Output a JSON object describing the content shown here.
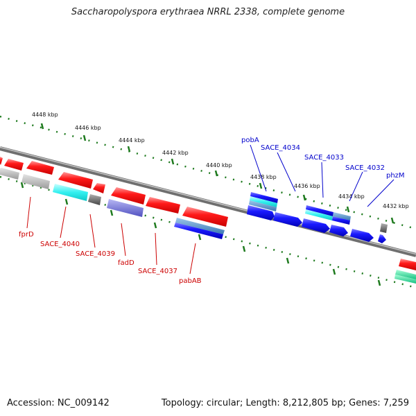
{
  "title": "Saccharopolyspora erythraea NRRL 2338, complete genome",
  "accession": "Accession: NC_009142",
  "topology": "Topology: circular; Length: 8,212,805 bp; Genes: 7,259",
  "colors": {
    "reverse_label": "#cc0000",
    "forward_label": "#0000cc",
    "backbone": "#8a8a8a",
    "tick": "#1e7a1e"
  },
  "kbp_labels": [
    "4448 kbp",
    "4446 kbp",
    "4444 kbp",
    "4442 kbp",
    "4440 kbp",
    "4438 kbp",
    "4436 kbp",
    "4434 kbp",
    "4432 kbp"
  ],
  "reverse_genes": [
    "fprD",
    "SACE_4040",
    "SACE_4039",
    "fadD",
    "SACE_4037",
    "pabAB"
  ],
  "forward_genes": [
    "pobA",
    "SACE_4034",
    "SACE_4033",
    "SACE_4032",
    "phzM"
  ]
}
